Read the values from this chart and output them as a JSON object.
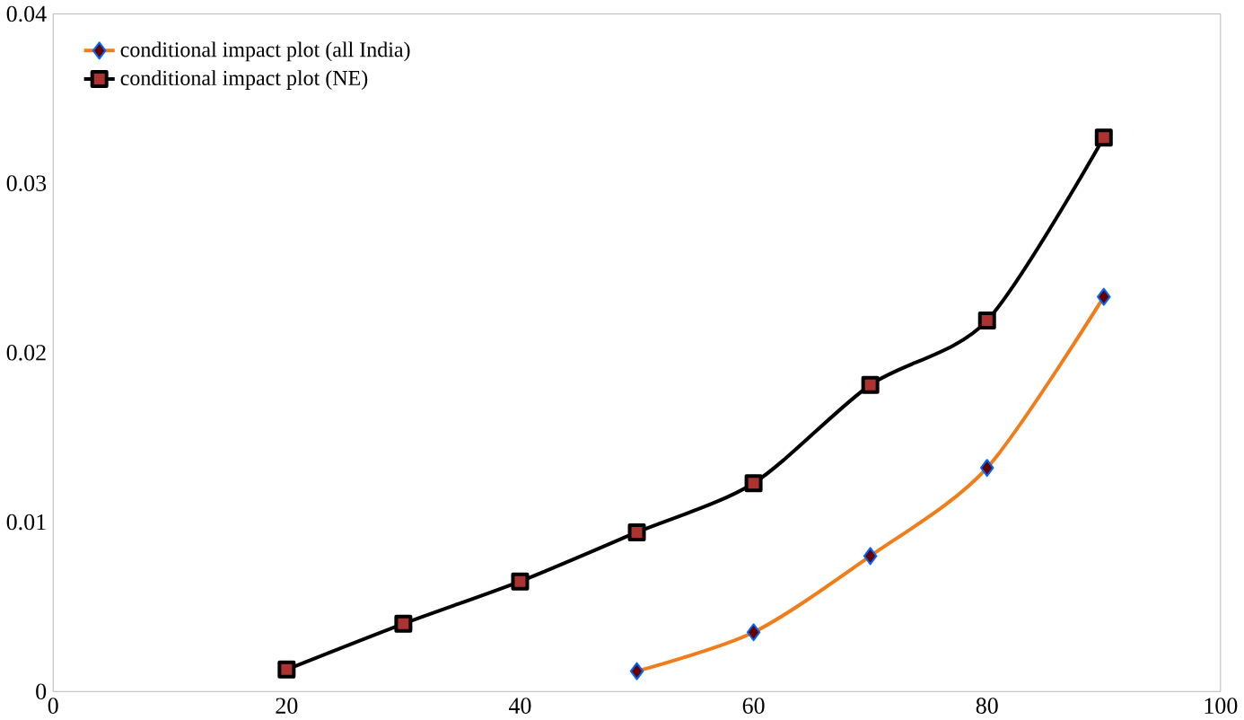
{
  "chart_data": {
    "type": "line",
    "xlim": [
      0,
      100
    ],
    "ylim": [
      0,
      0.04
    ],
    "xticks": [
      0,
      20,
      40,
      60,
      80,
      100
    ],
    "yticks": [
      0,
      0.01,
      0.02,
      0.03,
      0.04
    ],
    "grid": false,
    "legend": "top left",
    "series": [
      {
        "name": "conditional impact plot (all India)",
        "color": "#f07d1a",
        "marker": "diamond",
        "x": [
          50,
          60,
          70,
          80,
          90
        ],
        "values": [
          0.0012,
          0.0035,
          0.008,
          0.0132,
          0.0233
        ]
      },
      {
        "name": "conditional impact plot (NE)",
        "color": "#000000",
        "marker": "square",
        "x": [
          20,
          30,
          40,
          50,
          60,
          70,
          80,
          90
        ],
        "values": [
          0.0013,
          0.004,
          0.0065,
          0.0094,
          0.0123,
          0.0181,
          0.0219,
          0.0327
        ]
      }
    ]
  }
}
